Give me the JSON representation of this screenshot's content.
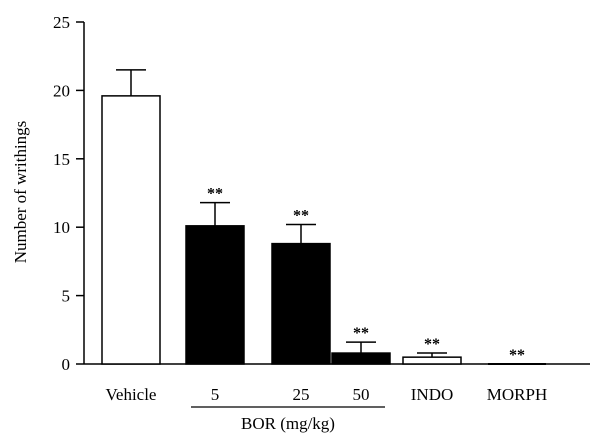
{
  "chart_data": {
    "type": "bar",
    "title": "",
    "xlabel": "",
    "ylabel": "Number of writhings",
    "ylim": [
      0,
      25
    ],
    "yticks": [
      "0",
      "5",
      "10",
      "15",
      "20",
      "25"
    ],
    "categories": [
      "Vehicle",
      "5",
      "25",
      "50",
      "INDO",
      "MORPH"
    ],
    "values": [
      19.6,
      10.1,
      8.8,
      0.8,
      0.5,
      0.0
    ],
    "errors": [
      1.9,
      1.7,
      1.4,
      0.8,
      0.3,
      0.0
    ],
    "fills": [
      "white",
      "black",
      "black",
      "black",
      "white",
      "white"
    ],
    "significance": [
      "",
      "**",
      "**",
      "**",
      "**",
      "**"
    ],
    "group_label": "BOR (mg/kg)",
    "group_categories": [
      1,
      3
    ],
    "grid": false,
    "legend": "none"
  }
}
